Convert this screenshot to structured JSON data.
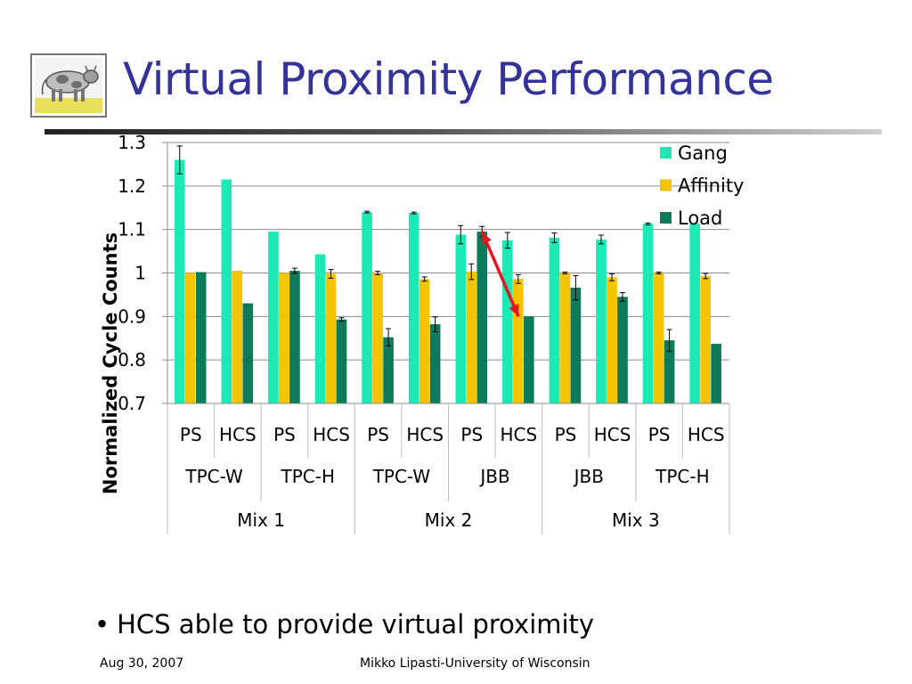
{
  "slide": {
    "title": "Virtual Proximity Performance",
    "bullet": "HCS able to provide virtual proximity",
    "footer_date": "Aug 30, 2007",
    "footer_author": "Mikko Lipasti-University of Wisconsin",
    "logo_icon": "cow-logo-icon"
  },
  "chart_data": {
    "type": "bar",
    "ylabel": "Normalized Cycle Counts",
    "ylim": [
      0.7,
      1.3
    ],
    "yticks": [
      0.7,
      0.8,
      0.9,
      1,
      1.1,
      1.2,
      1.3
    ],
    "ytick_labels": [
      "0.7",
      "0.8",
      "0.9",
      "1",
      "1.1",
      "1.2",
      "1.3"
    ],
    "grid": true,
    "legend_position": "top-right",
    "categories": [
      "PS",
      "HCS",
      "PS",
      "HCS",
      "PS",
      "HCS",
      "PS",
      "HCS",
      "PS",
      "HCS",
      "PS",
      "HCS"
    ],
    "workloads": [
      {
        "label": "TPC-W",
        "span": 2
      },
      {
        "label": "TPC-H",
        "span": 2
      },
      {
        "label": "TPC-W",
        "span": 2
      },
      {
        "label": "JBB",
        "span": 2
      },
      {
        "label": "JBB",
        "span": 2
      },
      {
        "label": "TPC-H",
        "span": 2
      }
    ],
    "mixes": [
      {
        "label": "Mix 1",
        "span": 4
      },
      {
        "label": "Mix 2",
        "span": 4
      },
      {
        "label": "Mix 3",
        "span": 4
      }
    ],
    "series": [
      {
        "name": "Gang",
        "color": "#1de9b6",
        "values": [
          1.26,
          1.215,
          1.095,
          1.043,
          1.14,
          1.138,
          1.088,
          1.075,
          1.081,
          1.077,
          1.113,
          1.113
        ],
        "errors": [
          0.032,
          0,
          0,
          0,
          0.002,
          0.002,
          0.021,
          0.018,
          0.011,
          0.01,
          0.002,
          0
        ]
      },
      {
        "name": "Affinity",
        "color": "#f5c400",
        "values": [
          1.0,
          1.005,
          1.0,
          0.998,
          1.0,
          0.986,
          1.003,
          0.986,
          1.0,
          0.99,
          1.0,
          0.993
        ],
        "errors": [
          0,
          0,
          0,
          0.01,
          0.004,
          0.005,
          0.018,
          0.01,
          0.002,
          0.008,
          0.002,
          0.006
        ]
      },
      {
        "name": "Load",
        "color": "#0d7a5c",
        "values": [
          1.002,
          0.93,
          1.005,
          0.893,
          0.852,
          0.882,
          1.095,
          0.9,
          0.966,
          0.945,
          0.845,
          0.837
        ],
        "errors": [
          0,
          0,
          0.006,
          0.004,
          0.02,
          0.017,
          0.012,
          0,
          0.028,
          0.01,
          0.025,
          0
        ]
      }
    ],
    "annotation": {
      "type": "arrow",
      "color": "#e8141e",
      "from": {
        "category_index": 6,
        "series": "Load"
      },
      "to": {
        "category_index": 7,
        "series": "Load"
      }
    }
  }
}
